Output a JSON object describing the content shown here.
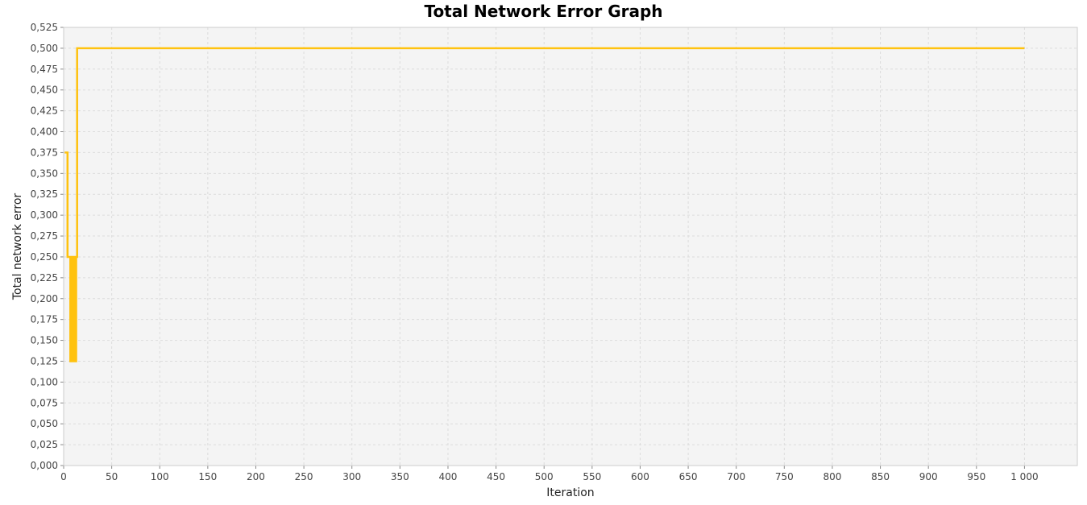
{
  "chart_data": {
    "type": "line",
    "title": "Total Network Error Graph",
    "xlabel": "Iteration",
    "ylabel": "Total network error",
    "xlim": [
      0,
      1055
    ],
    "ylim": [
      0,
      0.525
    ],
    "x_ticks": [
      {
        "value": 0,
        "label": "0"
      },
      {
        "value": 50,
        "label": "50"
      },
      {
        "value": 100,
        "label": "100"
      },
      {
        "value": 150,
        "label": "150"
      },
      {
        "value": 200,
        "label": "200"
      },
      {
        "value": 250,
        "label": "250"
      },
      {
        "value": 300,
        "label": "300"
      },
      {
        "value": 350,
        "label": "350"
      },
      {
        "value": 400,
        "label": "400"
      },
      {
        "value": 450,
        "label": "450"
      },
      {
        "value": 500,
        "label": "500"
      },
      {
        "value": 550,
        "label": "550"
      },
      {
        "value": 600,
        "label": "600"
      },
      {
        "value": 650,
        "label": "650"
      },
      {
        "value": 700,
        "label": "700"
      },
      {
        "value": 750,
        "label": "750"
      },
      {
        "value": 800,
        "label": "800"
      },
      {
        "value": 850,
        "label": "850"
      },
      {
        "value": 900,
        "label": "900"
      },
      {
        "value": 950,
        "label": "950"
      },
      {
        "value": 1000,
        "label": "1 000"
      }
    ],
    "y_ticks": [
      {
        "value": 0.0,
        "label": "0,000"
      },
      {
        "value": 0.025,
        "label": "0,025"
      },
      {
        "value": 0.05,
        "label": "0,050"
      },
      {
        "value": 0.075,
        "label": "0,075"
      },
      {
        "value": 0.1,
        "label": "0,100"
      },
      {
        "value": 0.125,
        "label": "0,125"
      },
      {
        "value": 0.15,
        "label": "0,150"
      },
      {
        "value": 0.175,
        "label": "0,175"
      },
      {
        "value": 0.2,
        "label": "0,200"
      },
      {
        "value": 0.225,
        "label": "0,225"
      },
      {
        "value": 0.25,
        "label": "0,250"
      },
      {
        "value": 0.275,
        "label": "0,275"
      },
      {
        "value": 0.3,
        "label": "0,300"
      },
      {
        "value": 0.325,
        "label": "0,325"
      },
      {
        "value": 0.35,
        "label": "0,350"
      },
      {
        "value": 0.375,
        "label": "0,375"
      },
      {
        "value": 0.4,
        "label": "0,400"
      },
      {
        "value": 0.425,
        "label": "0,425"
      },
      {
        "value": 0.45,
        "label": "0,450"
      },
      {
        "value": 0.475,
        "label": "0,475"
      },
      {
        "value": 0.5,
        "label": "0,500"
      },
      {
        "value": 0.525,
        "label": "0,525"
      }
    ],
    "grid": true,
    "legend": "none",
    "series": [
      {
        "color": "#ffc20e",
        "points": [
          [
            1,
            0.375
          ],
          [
            2,
            0.375
          ],
          [
            3,
            0.375
          ],
          [
            4,
            0.25
          ],
          [
            5,
            0.25
          ],
          [
            6,
            0.25
          ],
          [
            7,
            0.125
          ],
          [
            8,
            0.25
          ],
          [
            9,
            0.125
          ],
          [
            10,
            0.25
          ],
          [
            11,
            0.25
          ],
          [
            12,
            0.125
          ],
          [
            13,
            0.25
          ],
          [
            14,
            0.5
          ],
          [
            1000,
            0.5
          ]
        ]
      }
    ],
    "colors": {
      "plot_background": "#f4f4f4",
      "grid": "#dcdcdc",
      "axis": "#888888"
    }
  }
}
